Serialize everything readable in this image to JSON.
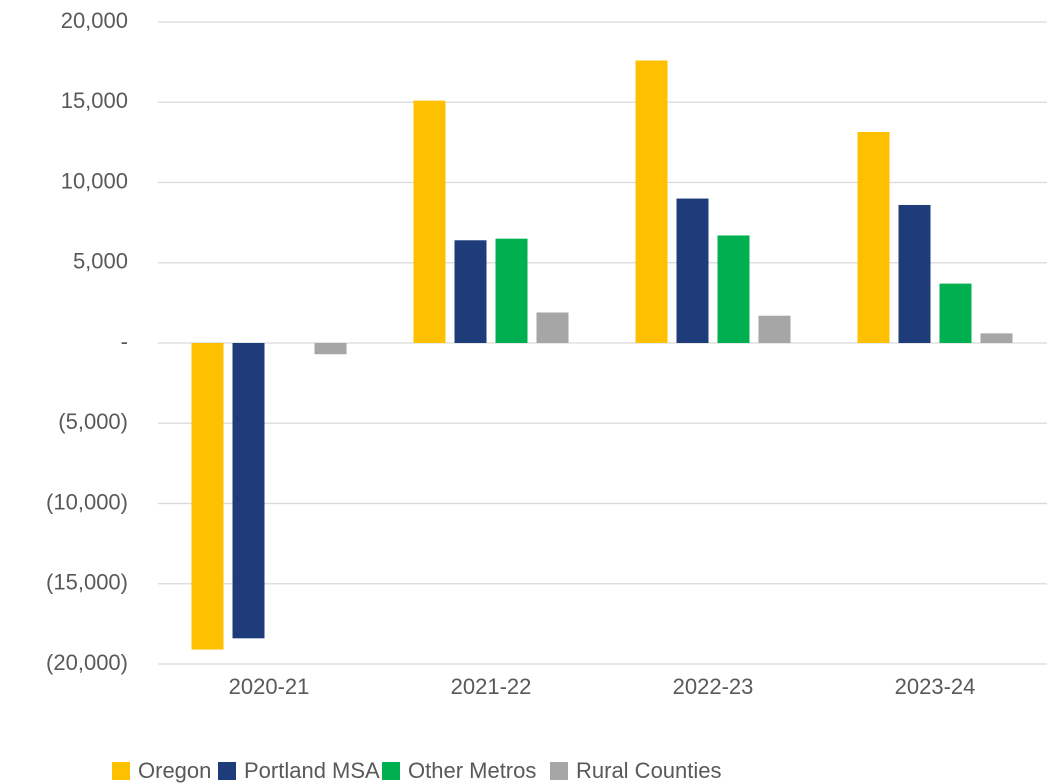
{
  "chart_data": {
    "type": "bar",
    "categories": [
      "2020-21",
      "2021-22",
      "2022-23",
      "2023-24"
    ],
    "series": [
      {
        "name": "Oregon",
        "color": "#FFC000",
        "values": [
          -19100,
          15100,
          17600,
          13150
        ]
      },
      {
        "name": "Portland MSA",
        "color": "#1F3C7A",
        "values": [
          -18400,
          6400,
          9000,
          8600
        ]
      },
      {
        "name": "Other Metros",
        "color": "#00B050",
        "values": [
          0,
          6500,
          6700,
          3700
        ]
      },
      {
        "name": "Rural Counties",
        "color": "#A6A6A6",
        "values": [
          -700,
          1900,
          1700,
          600
        ]
      }
    ],
    "ylim": [
      -20000,
      20000
    ],
    "yticks": [
      {
        "value": -20000,
        "label": "(20,000)"
      },
      {
        "value": -15000,
        "label": "(15,000)"
      },
      {
        "value": -10000,
        "label": "(10,000)"
      },
      {
        "value": -5000,
        "label": "(5,000)"
      },
      {
        "value": 0,
        "label": "-"
      },
      {
        "value": 5000,
        "label": "5,000"
      },
      {
        "value": 10000,
        "label": "10,000"
      },
      {
        "value": 15000,
        "label": "15,000"
      },
      {
        "value": 20000,
        "label": "20,000"
      }
    ],
    "grid": true,
    "legend": "bottom"
  }
}
